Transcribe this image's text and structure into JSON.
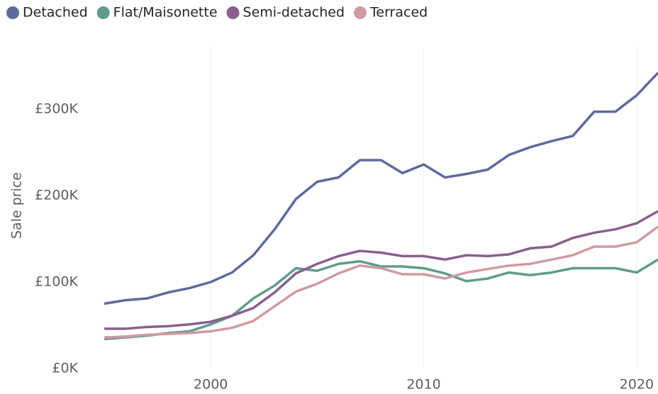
{
  "chart_data": {
    "type": "line",
    "ylabel": "Sale price",
    "x": [
      1995,
      1996,
      1997,
      1998,
      1999,
      2000,
      2001,
      2002,
      2003,
      2004,
      2005,
      2006,
      2007,
      2008,
      2009,
      2010,
      2011,
      2012,
      2013,
      2014,
      2015,
      2016,
      2017,
      2018,
      2019,
      2020,
      2021
    ],
    "series": [
      {
        "name": "Detached",
        "color": "#5d6b9c",
        "values": [
          75000,
          79000,
          81000,
          88000,
          93000,
          100000,
          111000,
          131000,
          161000,
          196000,
          216000,
          221000,
          241000,
          241000,
          226000,
          236000,
          221000,
          225000,
          230000,
          247000,
          256000,
          263000,
          269000,
          297000,
          297000,
          316000,
          342000
        ]
      },
      {
        "name": "Flat/Maisonette",
        "color": "#5f9c8c",
        "values": [
          34000,
          36000,
          38000,
          41000,
          43000,
          51000,
          61000,
          81000,
          96000,
          116000,
          113000,
          121000,
          124000,
          118000,
          118000,
          116000,
          110000,
          101000,
          104000,
          111000,
          108000,
          111000,
          116000,
          116000,
          116000,
          111000,
          126000
        ]
      },
      {
        "name": "Semi-detached",
        "color": "#8a5f8e",
        "values": [
          46000,
          46000,
          48000,
          49000,
          51000,
          54000,
          61000,
          70000,
          88000,
          110000,
          121000,
          130000,
          136000,
          134000,
          130000,
          130000,
          126000,
          131000,
          130000,
          132000,
          139000,
          141000,
          151000,
          157000,
          161000,
          168000,
          182000
        ]
      },
      {
        "name": "Terraced",
        "color": "#d09aa3",
        "values": [
          36000,
          37000,
          39000,
          40000,
          41000,
          43000,
          47000,
          55000,
          72000,
          89000,
          98000,
          110000,
          119000,
          116000,
          109000,
          109000,
          104000,
          111000,
          115000,
          119000,
          121000,
          126000,
          131000,
          141000,
          141000,
          146000,
          164000
        ]
      }
    ],
    "xlim": [
      1994.1,
      2021
    ],
    "xticks": [
      2000,
      2010,
      2020
    ],
    "xgrid": true,
    "ylim": [
      0,
      375000
    ],
    "yticks": [
      {
        "value": 0,
        "label": "£0K"
      },
      {
        "value": 100000,
        "label": "£100K"
      },
      {
        "value": 200000,
        "label": "£200K"
      },
      {
        "value": 300000,
        "label": "£300K"
      }
    ],
    "legend": "top-left"
  }
}
